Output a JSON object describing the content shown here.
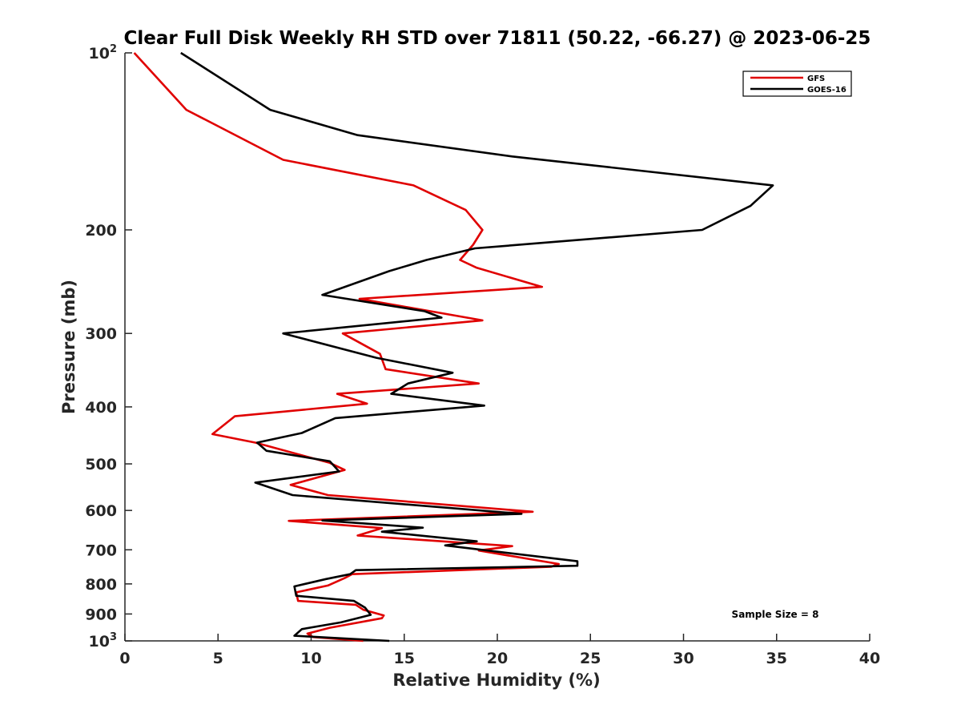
{
  "chart_data": {
    "type": "line",
    "title": "Clear Full Disk Weekly RH STD over 71811 (50.22, -66.27) @ 2023-06-25",
    "xlabel": "Relative Humidity (%)",
    "ylabel": "Pressure (mb)",
    "xlim": [
      0,
      40
    ],
    "ylim": [
      100,
      1000
    ],
    "yscale": "log",
    "y_reversed": true,
    "x_ticks": [
      0,
      5,
      10,
      15,
      20,
      25,
      30,
      35,
      40
    ],
    "x_tick_labels": [
      "0",
      "5",
      "10",
      "15",
      "20",
      "25",
      "30",
      "35",
      "40"
    ],
    "y_ticks": [
      100,
      200,
      300,
      400,
      500,
      600,
      700,
      800,
      900,
      1000
    ],
    "y_tick_labels": [
      {
        "base": "10",
        "exp": "2"
      },
      {
        "base": "200",
        "exp": ""
      },
      {
        "base": "300",
        "exp": ""
      },
      {
        "base": "400",
        "exp": ""
      },
      {
        "base": "500",
        "exp": ""
      },
      {
        "base": "600",
        "exp": ""
      },
      {
        "base": "700",
        "exp": ""
      },
      {
        "base": "800",
        "exp": ""
      },
      {
        "base": "900",
        "exp": ""
      },
      {
        "base": "10",
        "exp": "3"
      }
    ],
    "grid": false,
    "legend_position": "top-right",
    "annotation": "Sample Size = 8",
    "series": [
      {
        "name": "GFS",
        "color": "#e00000",
        "points": [
          [
            0.5,
            100
          ],
          [
            3.3,
            125
          ],
          [
            8.5,
            152
          ],
          [
            15.5,
            168
          ],
          [
            18.3,
            185
          ],
          [
            19.2,
            200
          ],
          [
            18.7,
            212
          ],
          [
            18.0,
            225
          ],
          [
            18.9,
            232
          ],
          [
            22.4,
            250
          ],
          [
            12.6,
            262
          ],
          [
            19.2,
            285
          ],
          [
            11.7,
            300
          ],
          [
            13.7,
            325
          ],
          [
            14.0,
            345
          ],
          [
            19.0,
            365
          ],
          [
            11.4,
            380
          ],
          [
            13.0,
            395
          ],
          [
            5.9,
            415
          ],
          [
            4.7,
            445
          ],
          [
            7.0,
            460
          ],
          [
            11.0,
            498
          ],
          [
            11.8,
            512
          ],
          [
            8.9,
            543
          ],
          [
            10.9,
            565
          ],
          [
            21.9,
            603
          ],
          [
            8.8,
            625
          ],
          [
            13.8,
            643
          ],
          [
            12.5,
            662
          ],
          [
            20.8,
            690
          ],
          [
            19.0,
            702
          ],
          [
            23.3,
            740
          ],
          [
            22.9,
            748
          ],
          [
            12.2,
            770
          ],
          [
            11.8,
            782
          ],
          [
            10.9,
            805
          ],
          [
            9.2,
            827
          ],
          [
            9.3,
            855
          ],
          [
            12.4,
            868
          ],
          [
            12.8,
            885
          ],
          [
            13.9,
            905
          ],
          [
            13.8,
            915
          ],
          [
            11.0,
            950
          ],
          [
            9.8,
            972
          ],
          [
            10.1,
            985
          ],
          [
            12.8,
            1000
          ]
        ]
      },
      {
        "name": "GOES-16",
        "color": "#000000",
        "points": [
          [
            3.0,
            100
          ],
          [
            7.8,
            125
          ],
          [
            12.5,
            138
          ],
          [
            20.8,
            150
          ],
          [
            34.8,
            168
          ],
          [
            33.6,
            182
          ],
          [
            31.0,
            200
          ],
          [
            18.8,
            215
          ],
          [
            16.2,
            225
          ],
          [
            14.2,
            235
          ],
          [
            10.6,
            258
          ],
          [
            16.1,
            275
          ],
          [
            17.0,
            282
          ],
          [
            8.5,
            300
          ],
          [
            13.5,
            330
          ],
          [
            17.6,
            350
          ],
          [
            15.2,
            365
          ],
          [
            14.3,
            380
          ],
          [
            19.3,
            398
          ],
          [
            11.3,
            418
          ],
          [
            9.5,
            443
          ],
          [
            7.1,
            460
          ],
          [
            7.6,
            475
          ],
          [
            11.0,
            495
          ],
          [
            11.5,
            515
          ],
          [
            7.0,
            538
          ],
          [
            9.0,
            565
          ],
          [
            21.3,
            608
          ],
          [
            10.6,
            624
          ],
          [
            16.0,
            642
          ],
          [
            13.8,
            652
          ],
          [
            18.9,
            677
          ],
          [
            17.2,
            688
          ],
          [
            24.3,
            732
          ],
          [
            24.3,
            745
          ],
          [
            12.4,
            758
          ],
          [
            12.1,
            770
          ],
          [
            10.8,
            785
          ],
          [
            9.1,
            808
          ],
          [
            9.2,
            838
          ],
          [
            12.3,
            855
          ],
          [
            12.9,
            878
          ],
          [
            13.2,
            903
          ],
          [
            11.6,
            930
          ],
          [
            9.5,
            955
          ],
          [
            9.1,
            980
          ],
          [
            14.2,
            1000
          ]
        ]
      }
    ]
  }
}
